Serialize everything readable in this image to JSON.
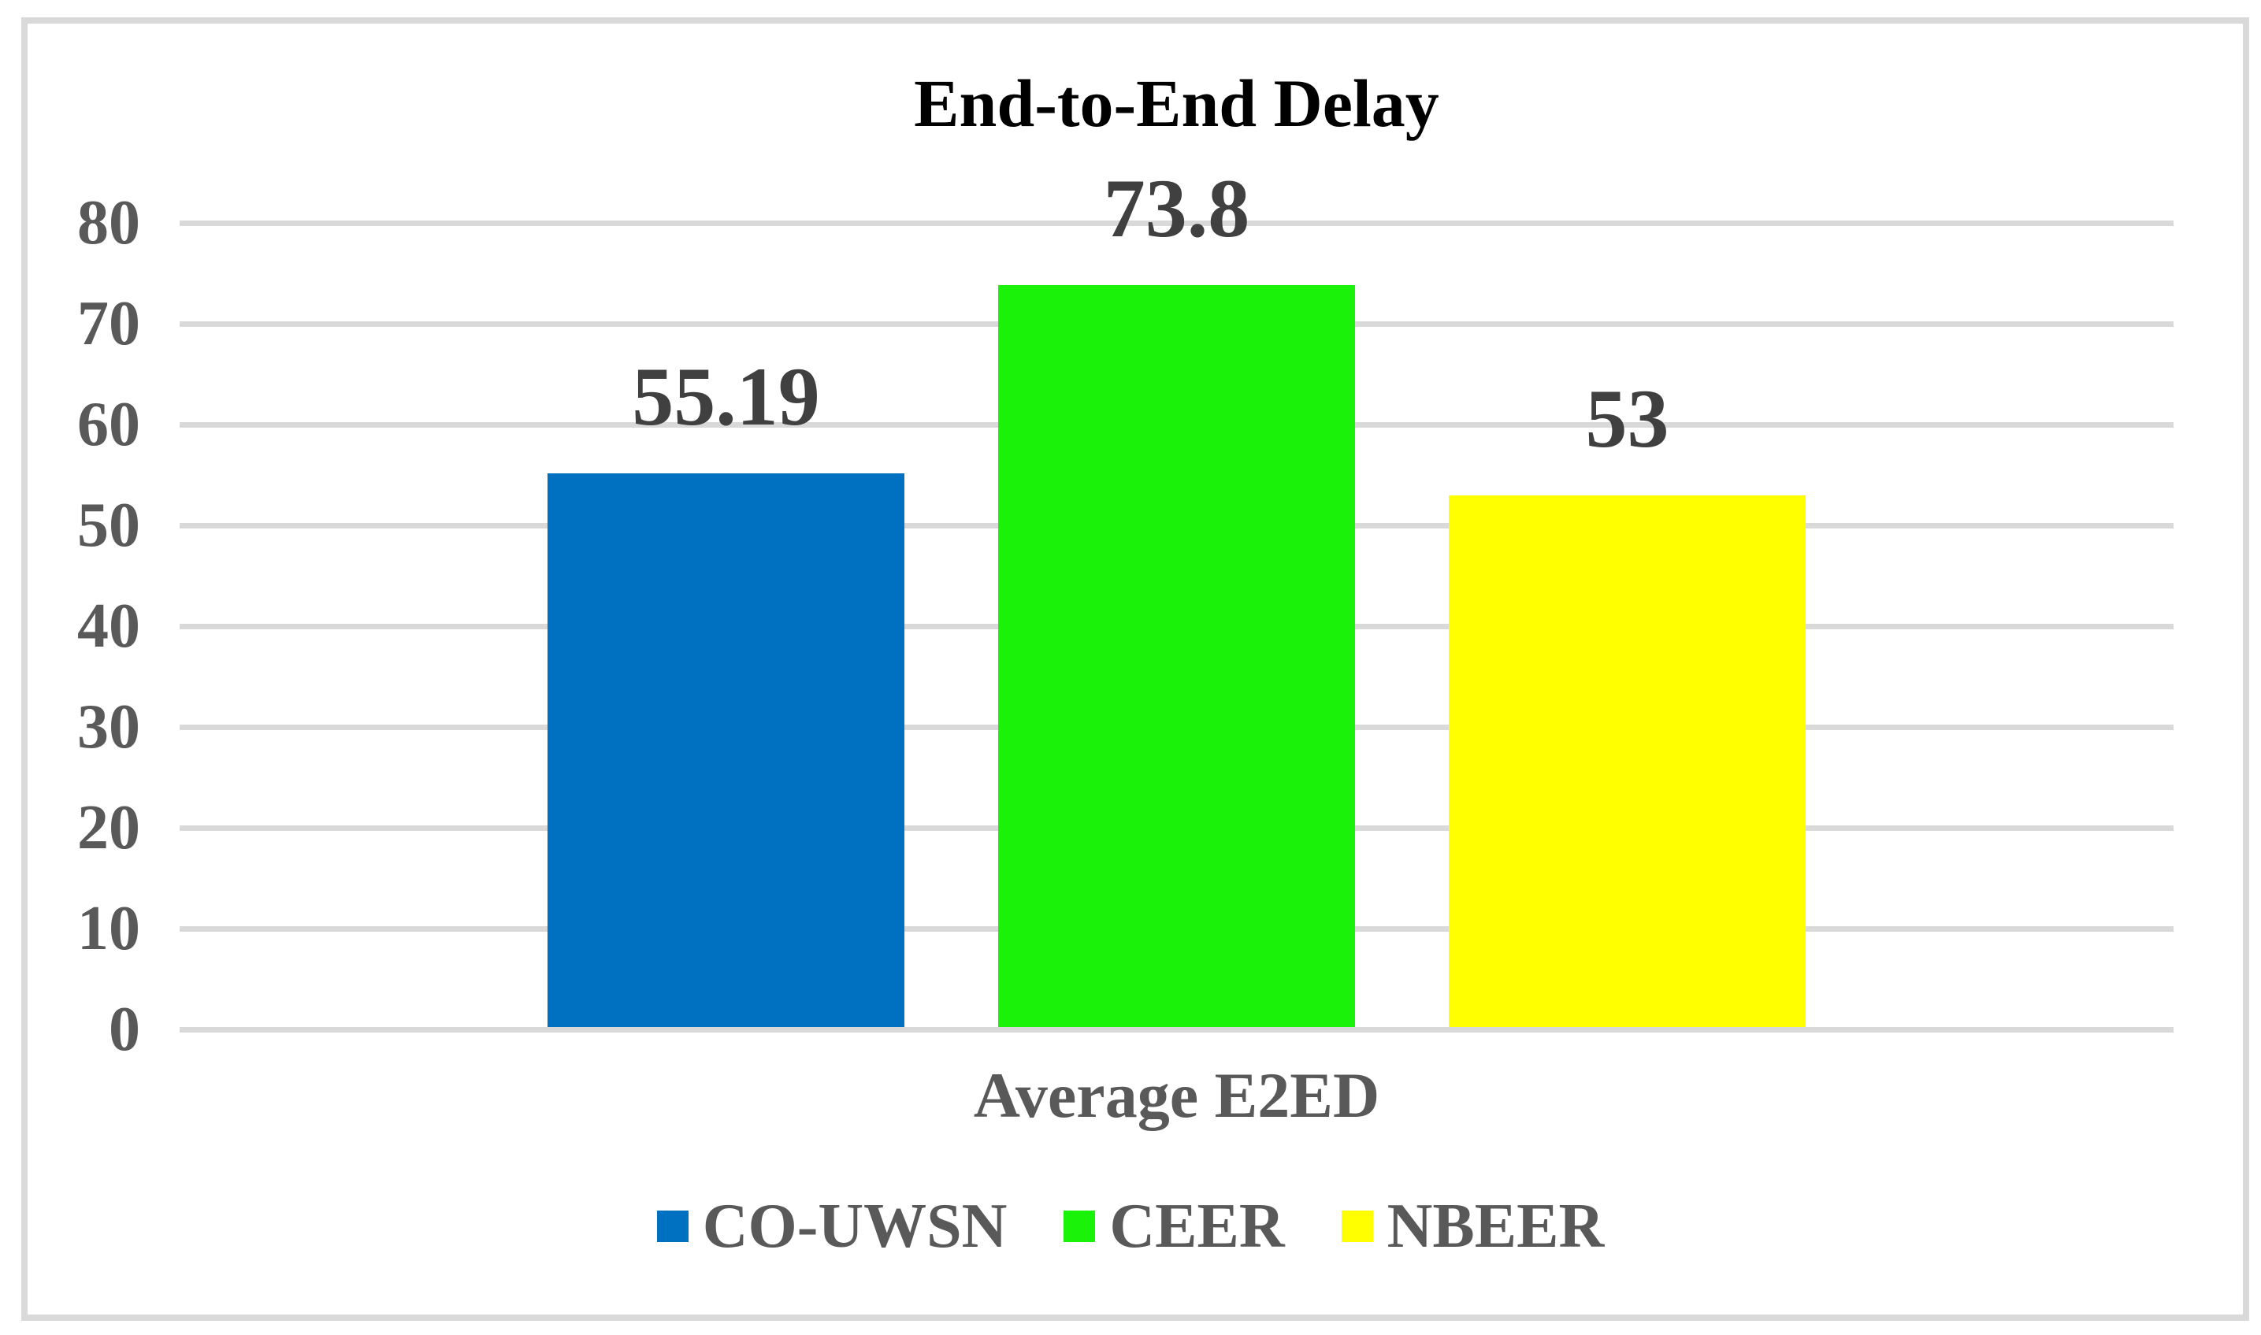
{
  "chart": {
    "title": "End-to-End Delay",
    "x_axis_label": "Average E2ED",
    "colors": {
      "background": "#FFFFFF",
      "frame": "#D9D9D9",
      "gridline": "#D9D9D9",
      "title_text": "#000000",
      "data_label_text": "#404040",
      "axis_text": "#595959"
    }
  },
  "chart_data": {
    "type": "bar",
    "title": "End-to-End Delay",
    "xlabel": "Average E2ED",
    "ylabel": "",
    "categories": [
      "Average E2ED"
    ],
    "series": [
      {
        "name": "CO-UWSN",
        "value": 55.19,
        "label": "55.19",
        "color": "#0070C0"
      },
      {
        "name": "CEER",
        "value": 73.8,
        "label": "73.8",
        "color": "#1BF209"
      },
      {
        "name": "NBEER",
        "value": 53,
        "label": "53",
        "color": "#FFFF00"
      }
    ],
    "ylim": [
      0,
      80
    ],
    "ytick_step": 10,
    "y_ticks": [
      0,
      10,
      20,
      30,
      40,
      50,
      60,
      70,
      80
    ],
    "grid": "horizontal",
    "legend_position": "bottom"
  }
}
